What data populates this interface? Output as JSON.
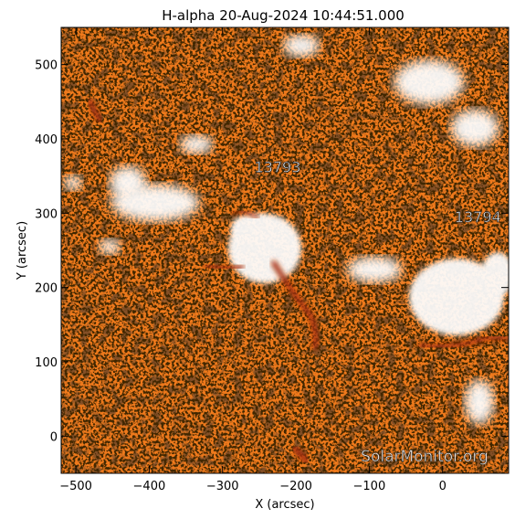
{
  "figure": {
    "title": "H-alpha 20-Aug-2024 10:44:51.000",
    "xlabel": "X (arcsec)",
    "ylabel": "Y (arcsec)",
    "watermark": "SolarMonitor.org",
    "xlim": [
      -520,
      90
    ],
    "ylim": [
      -50,
      550
    ],
    "xticks": [
      -500,
      -400,
      -300,
      -200,
      -100,
      0
    ],
    "yticks": [
      0,
      100,
      200,
      300,
      400,
      500
    ],
    "xtick_labels": [
      "−500",
      "−400",
      "−300",
      "−200",
      "−100",
      "0"
    ],
    "ytick_labels": [
      "0",
      "100",
      "200",
      "300",
      "400",
      "500"
    ],
    "colors": {
      "background_orange": "#f07a1c",
      "dark_speckle": "#3a1406",
      "bright_plage": "#ffffff",
      "filament_dark": "#a8300a"
    },
    "regions": [
      {
        "label": "13793",
        "x": -225,
        "y": 355
      },
      {
        "label": "13794",
        "x": 48,
        "y": 288
      }
    ]
  }
}
